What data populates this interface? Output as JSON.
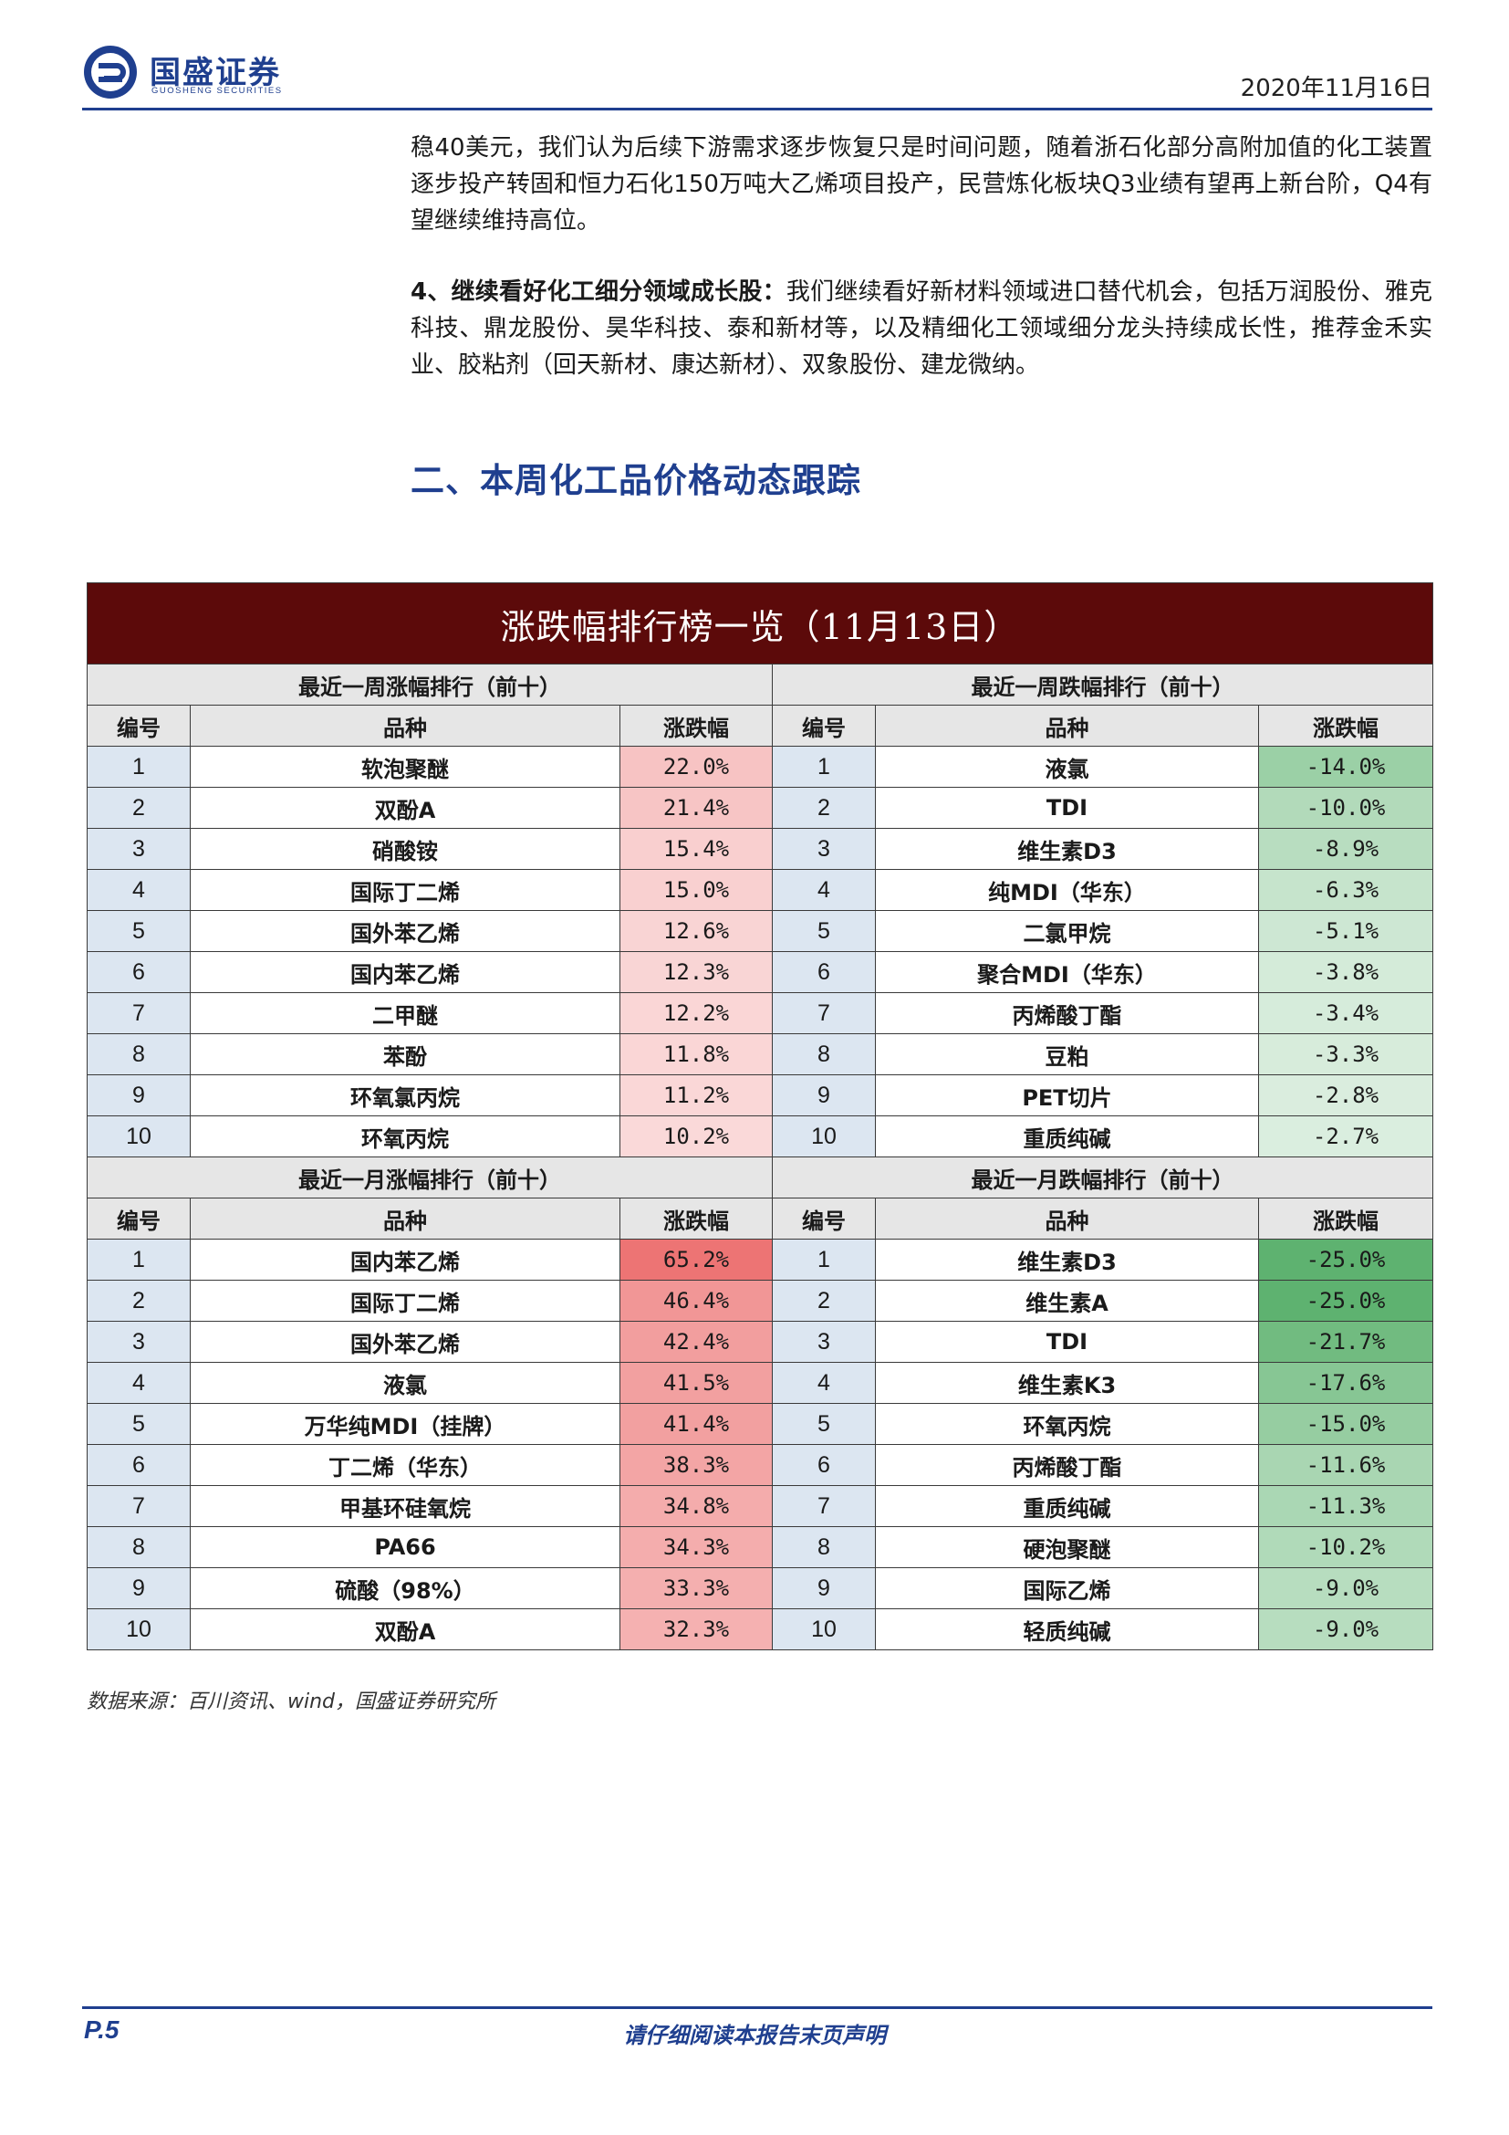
{
  "header": {
    "company_name": "国盛证券",
    "company_name_en": "GUOSHENG SECURITIES",
    "date": "2020年11月16日",
    "brand_color": "#1f3f8f"
  },
  "paragraphs": {
    "p1": "稳40美元，我们认为后续下游需求逐步恢复只是时间问题，随着浙石化部分高附加值的化工装置逐步投产转固和恒力石化150万吨大乙烯项目投产，民营炼化板块Q3业绩有望再上新台阶，Q4有望继续维持高位。",
    "p2_lead": "4、继续看好化工细分领域成长股：",
    "p2_rest": "我们继续看好新材料领域进口替代机会，包括万润股份、雅克科技、鼎龙股份、昊华科技、泰和新材等，以及精细化工领域细分龙头持续成长性，推荐金禾实业、胶粘剂（回天新材、康达新材）、双象股份、建龙微纳。"
  },
  "section_title": "二、本周化工品价格动态跟踪",
  "table": {
    "title": "涨跌幅排行榜一览（11月13日）",
    "title_bg": "#5c0a0a",
    "col_headers": {
      "no": "编号",
      "name": "品种",
      "pct": "涨跌幅"
    },
    "blocks": [
      {
        "left_title": "最近一周涨幅排行（前十）",
        "right_title": "最近一周跌幅排行（前十）",
        "rows": [
          {
            "ln": "1",
            "lname": "软泡聚醚",
            "lpct": "22.0%",
            "lv": 22.0,
            "rn": "1",
            "rname": "液氯",
            "rpct": "-14.0%",
            "rv": -14.0
          },
          {
            "ln": "2",
            "lname": "双酚A",
            "lpct": "21.4%",
            "lv": 21.4,
            "rn": "2",
            "rname": "TDI",
            "rpct": "-10.0%",
            "rv": -10.0
          },
          {
            "ln": "3",
            "lname": "硝酸铵",
            "lpct": "15.4%",
            "lv": 15.4,
            "rn": "3",
            "rname": "维生素D3",
            "rpct": "-8.9%",
            "rv": -8.9
          },
          {
            "ln": "4",
            "lname": "国际丁二烯",
            "lpct": "15.0%",
            "lv": 15.0,
            "rn": "4",
            "rname": "纯MDI（华东）",
            "rpct": "-6.3%",
            "rv": -6.3
          },
          {
            "ln": "5",
            "lname": "国外苯乙烯",
            "lpct": "12.6%",
            "lv": 12.6,
            "rn": "5",
            "rname": "二氯甲烷",
            "rpct": "-5.1%",
            "rv": -5.1
          },
          {
            "ln": "6",
            "lname": "国内苯乙烯",
            "lpct": "12.3%",
            "lv": 12.3,
            "rn": "6",
            "rname": "聚合MDI（华东）",
            "rpct": "-3.8%",
            "rv": -3.8
          },
          {
            "ln": "7",
            "lname": "二甲醚",
            "lpct": "12.2%",
            "lv": 12.2,
            "rn": "7",
            "rname": "丙烯酸丁酯",
            "rpct": "-3.4%",
            "rv": -3.4
          },
          {
            "ln": "8",
            "lname": "苯酚",
            "lpct": "11.8%",
            "lv": 11.8,
            "rn": "8",
            "rname": "豆粕",
            "rpct": "-3.3%",
            "rv": -3.3
          },
          {
            "ln": "9",
            "lname": "环氧氯丙烷",
            "lpct": "11.2%",
            "lv": 11.2,
            "rn": "9",
            "rname": "PET切片",
            "rpct": "-2.8%",
            "rv": -2.8
          },
          {
            "ln": "10",
            "lname": "环氧丙烷",
            "lpct": "10.2%",
            "lv": 10.2,
            "rn": "10",
            "rname": "重质纯碱",
            "rpct": "-2.7%",
            "rv": -2.7
          }
        ]
      },
      {
        "left_title": "最近一月涨幅排行（前十）",
        "right_title": "最近一月跌幅排行（前十）",
        "rows": [
          {
            "ln": "1",
            "lname": "国内苯乙烯",
            "lpct": "65.2%",
            "lv": 65.2,
            "rn": "1",
            "rname": "维生素D3",
            "rpct": "-25.0%",
            "rv": -25.0
          },
          {
            "ln": "2",
            "lname": "国际丁二烯",
            "lpct": "46.4%",
            "lv": 46.4,
            "rn": "2",
            "rname": "维生素A",
            "rpct": "-25.0%",
            "rv": -25.0
          },
          {
            "ln": "3",
            "lname": "国外苯乙烯",
            "lpct": "42.4%",
            "lv": 42.4,
            "rn": "3",
            "rname": "TDI",
            "rpct": "-21.7%",
            "rv": -21.7
          },
          {
            "ln": "4",
            "lname": "液氯",
            "lpct": "41.5%",
            "lv": 41.5,
            "rn": "4",
            "rname": "维生素K3",
            "rpct": "-17.6%",
            "rv": -17.6
          },
          {
            "ln": "5",
            "lname": "万华纯MDI（挂牌）",
            "lpct": "41.4%",
            "lv": 41.4,
            "rn": "5",
            "rname": "环氧丙烷",
            "rpct": "-15.0%",
            "rv": -15.0
          },
          {
            "ln": "6",
            "lname": "丁二烯（华东）",
            "lpct": "38.3%",
            "lv": 38.3,
            "rn": "6",
            "rname": "丙烯酸丁酯",
            "rpct": "-11.6%",
            "rv": -11.6
          },
          {
            "ln": "7",
            "lname": "甲基环硅氧烷",
            "lpct": "34.8%",
            "lv": 34.8,
            "rn": "7",
            "rname": "重质纯碱",
            "rpct": "-11.3%",
            "rv": -11.3
          },
          {
            "ln": "8",
            "lname": "PA66",
            "lpct": "34.3%",
            "lv": 34.3,
            "rn": "8",
            "rname": "硬泡聚醚",
            "rpct": "-10.2%",
            "rv": -10.2
          },
          {
            "ln": "9",
            "lname": "硫酸（98%）",
            "lpct": "33.3%",
            "lv": 33.3,
            "rn": "9",
            "rname": "国际乙烯",
            "rpct": "-9.0%",
            "rv": -9.0
          },
          {
            "ln": "10",
            "lname": "双酚A",
            "lpct": "32.3%",
            "lv": 32.3,
            "rn": "10",
            "rname": "轻质纯碱",
            "rpct": "-9.0%",
            "rv": -9.0
          }
        ]
      }
    ]
  },
  "source": "数据来源：百川资讯、wind，国盛证券研究所",
  "footer": {
    "page": "P.5",
    "disclaimer": "请仔细阅读本报告末页声明"
  }
}
